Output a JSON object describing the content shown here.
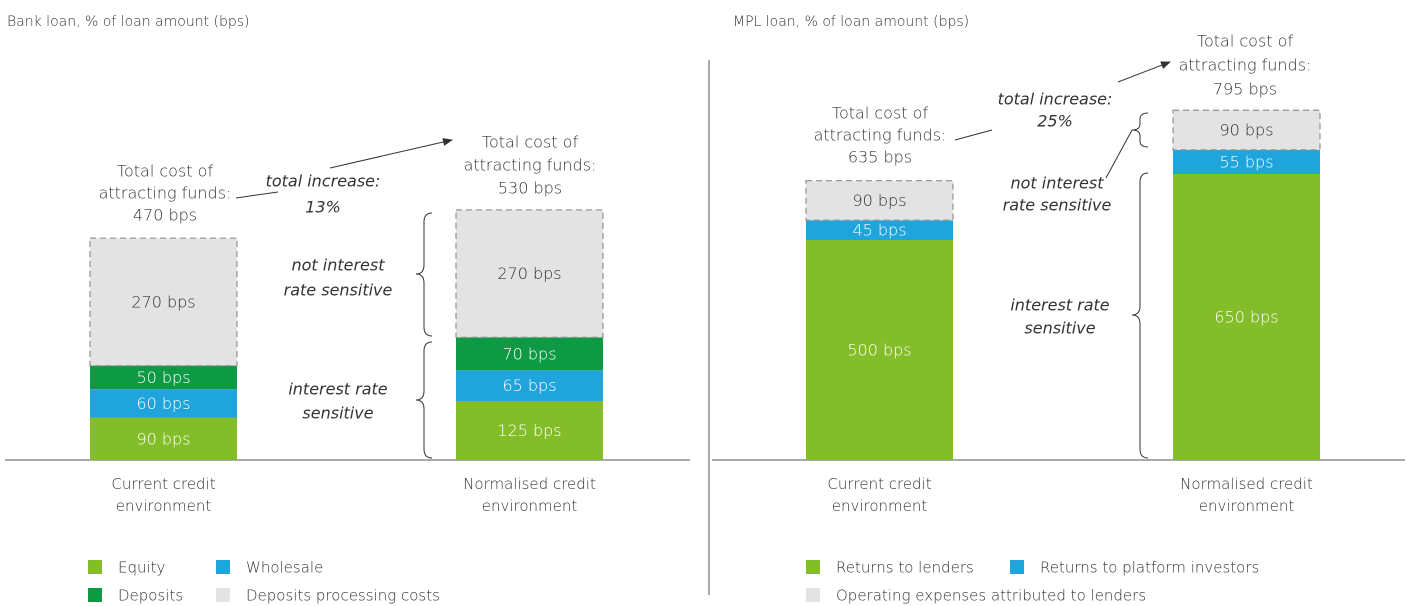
{
  "chart_data": [
    {
      "type": "bar",
      "stacked": true,
      "subtitle": "Bank loan, % of loan amount (bps)",
      "categories": [
        "Current credit environment",
        "Normalised credit environment"
      ],
      "series": [
        {
          "name": "Equity",
          "color": "#84bd2a",
          "values": [
            90,
            125
          ],
          "value_labels": [
            "90 bps",
            "125 bps"
          ]
        },
        {
          "name": "Wholesale",
          "color": "#1fa5dc",
          "values": [
            60,
            65
          ],
          "value_labels": [
            "60 bps",
            "65 bps"
          ]
        },
        {
          "name": "Deposits",
          "color": "#0e9a45",
          "values": [
            50,
            70
          ],
          "value_labels": [
            "50 bps",
            "70 bps"
          ]
        },
        {
          "name": "Deposits processing costs",
          "color": "#e3e3e3",
          "dashed": true,
          "values": [
            270,
            270
          ],
          "value_labels": [
            "270 bps",
            "270 bps"
          ]
        }
      ],
      "annotations": [
        {
          "text": [
            "Total cost of",
            "attracting funds:",
            "470 bps"
          ]
        },
        {
          "text": [
            "total increase:",
            "13%"
          ],
          "italic": true
        },
        {
          "text": [
            "Total cost of",
            "attracting funds:",
            "530 bps"
          ]
        },
        {
          "text": [
            "not interest",
            "rate sensitive"
          ],
          "italic": true
        },
        {
          "text": [
            "interest rate",
            "sensitive"
          ],
          "italic": true
        }
      ]
    },
    {
      "type": "bar",
      "stacked": true,
      "subtitle": "MPL loan, % of loan amount (bps)",
      "categories": [
        "Current credit environment",
        "Normalised credit environment"
      ],
      "series": [
        {
          "name": "Returns to lenders",
          "color": "#84bd2a",
          "values": [
            500,
            650
          ],
          "value_labels": [
            "500 bps",
            "650 bps"
          ]
        },
        {
          "name": "Returns to platform investors",
          "color": "#1fa5dc",
          "values": [
            45,
            55
          ],
          "value_labels": [
            "45 bps",
            "55 bps"
          ]
        },
        {
          "name": "Operating expenses attributed to lenders",
          "color": "#e3e3e3",
          "dashed": true,
          "values": [
            90,
            90
          ],
          "value_labels": [
            "90 bps",
            "90 bps"
          ]
        }
      ],
      "annotations": [
        {
          "text": [
            "Total cost of",
            "attracting funds:",
            "635 bps"
          ]
        },
        {
          "text": [
            "total increase:",
            "25%"
          ],
          "italic": true
        },
        {
          "text": [
            "Total cost of",
            "attracting funds:",
            "795 bps"
          ]
        },
        {
          "text": [
            "not interest",
            "rate sensitive"
          ],
          "italic": true
        },
        {
          "text": [
            "interest rate",
            "sensitive"
          ],
          "italic": true
        }
      ]
    }
  ]
}
